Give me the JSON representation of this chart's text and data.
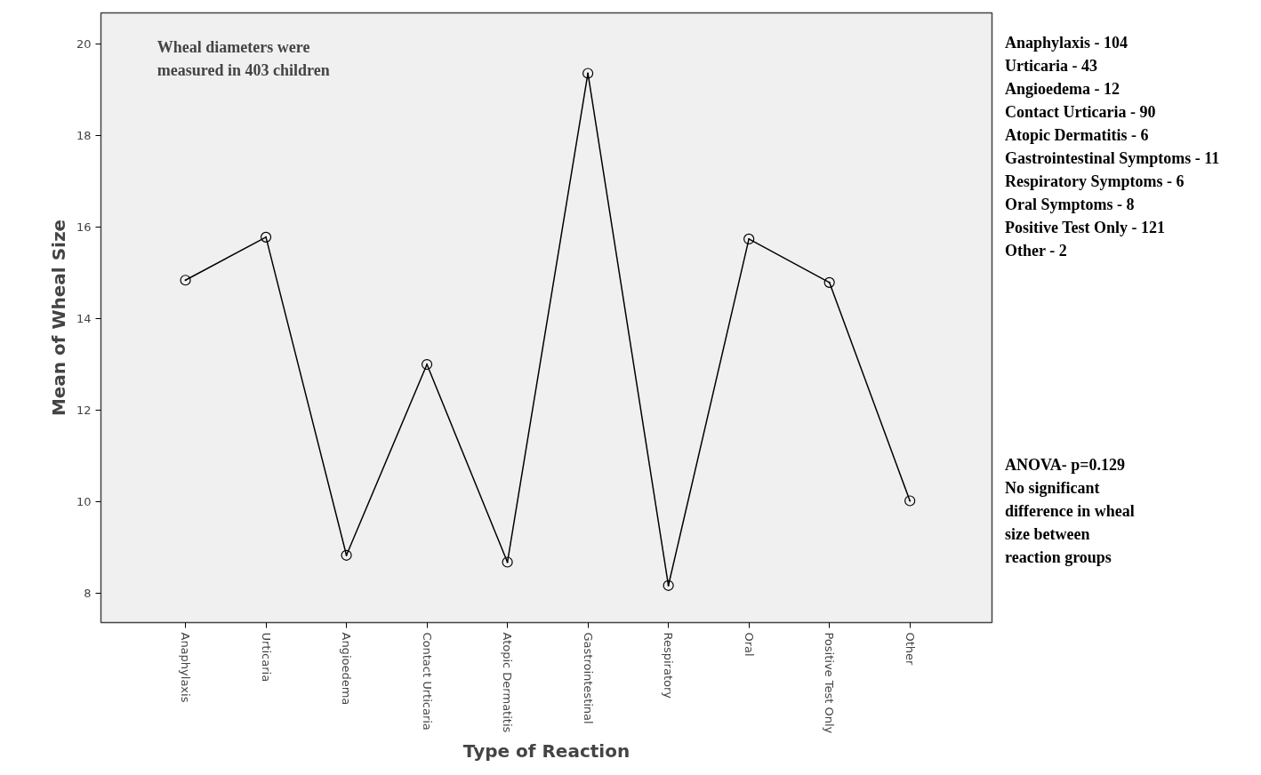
{
  "chart_data": {
    "type": "line",
    "xlabel": "Type of Reaction",
    "ylabel": "Mean of Wheal Size",
    "categories": [
      "Anaphylaxis",
      "Urticaria",
      "Angioedema",
      "Contact Urticaria",
      "Atopic Dermatitis",
      "Gastrointestinal",
      "Respiratory",
      "Oral",
      "Positive Test Only",
      "Other"
    ],
    "series": [
      {
        "color": "#000000",
        "values": [
          14.84,
          15.78,
          8.83,
          13.0,
          8.68,
          19.36,
          8.17,
          15.74,
          14.79,
          10.02
        ]
      }
    ],
    "ylim": [
      7.36,
      20.68
    ],
    "yticks": [
      8,
      10,
      12,
      14,
      16,
      18,
      20
    ],
    "marker": "circle",
    "line_style": "solid",
    "grid": false,
    "annotations": [
      "Wheal diameters were\nmeasured in 403 children",
      "Anaphylaxis - 104\nUrticaria - 43\nAngioedema - 12\nContact Urticaria - 90\nAtopic Dermatitis - 6\nGastrointestinal Symptoms - 11\nRespiratory Symptoms - 6\nOral Symptoms - 8\nPositive Test Only - 121\nOther - 2",
      "ANOVA- p=0.129\nNo significant\ndifference in wheal\nsize between\nreaction groups"
    ]
  }
}
